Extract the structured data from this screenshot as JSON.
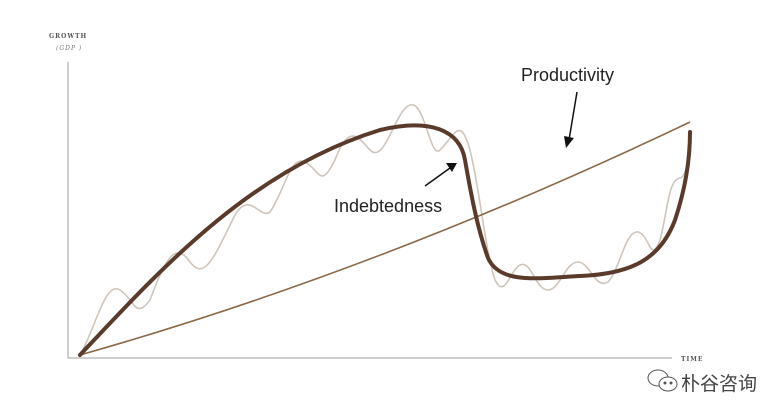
{
  "y_axis": {
    "title": "GROWTH",
    "subtitle": "(GDP )"
  },
  "x_axis": {
    "title": "TIME"
  },
  "labels": {
    "productivity": "Productivity",
    "indebtedness": "Indebtedness"
  },
  "watermark": {
    "text": "朴谷咨询",
    "icon": "wechat-icon"
  },
  "colors": {
    "indebtedness": "#5a3b2b",
    "productivity": "#8a6848",
    "cycle": "#cfc5bb",
    "axis": "#bdbdbd"
  }
}
